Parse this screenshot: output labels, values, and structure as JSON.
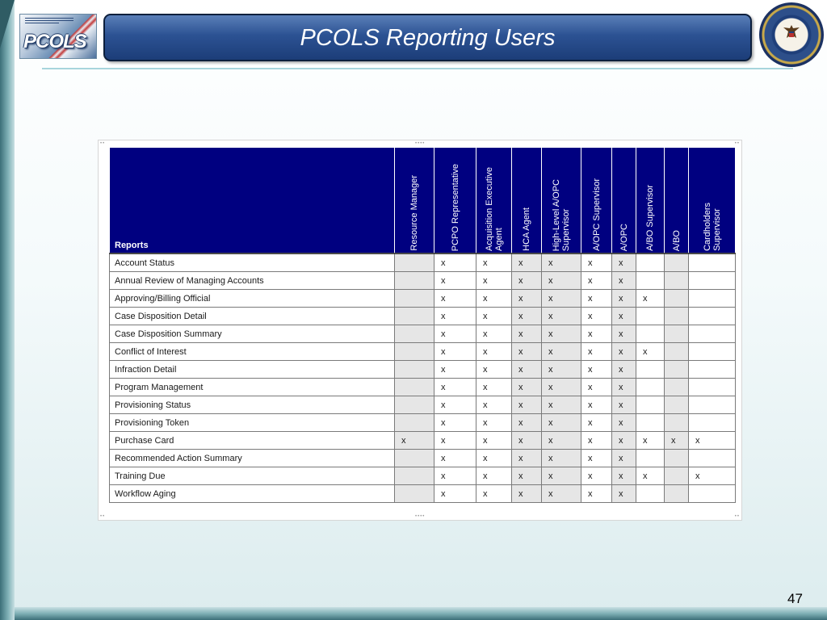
{
  "slide": {
    "title": "PCOLS Reporting Users",
    "page_number": "47",
    "logo_text": "PCOLS",
    "seal_text": "DEPARTMENT OF DEFENSE UNITED STATES OF AMERICA"
  },
  "table": {
    "row_header": "Reports",
    "columns": [
      "Resource Manager",
      "PCPO Representative",
      "Acquisition Executive\nAgent",
      "HCA Agent",
      "High-Level A/OPC\nSupervisor",
      "A/OPC Supervisor",
      "A/OPC",
      "A/BO Supervisor",
      "A/BO",
      "Cardholders\nSupervisor"
    ],
    "shaded_columns": [
      0,
      3,
      4,
      6,
      8
    ],
    "rows": [
      {
        "name": "Account Status",
        "marks": [
          "",
          "x",
          "x",
          "x",
          "x",
          "x",
          "x",
          "",
          "",
          ""
        ]
      },
      {
        "name": "Annual Review of Managing Accounts",
        "marks": [
          "",
          "x",
          "x",
          "x",
          "x",
          "x",
          "x",
          "",
          "",
          ""
        ]
      },
      {
        "name": "Approving/Billing Official",
        "marks": [
          "",
          "x",
          "x",
          "x",
          "x",
          "x",
          "x",
          "x",
          "",
          ""
        ]
      },
      {
        "name": "Case Disposition Detail",
        "marks": [
          "",
          "x",
          "x",
          "x",
          "x",
          "x",
          "x",
          "",
          "",
          ""
        ]
      },
      {
        "name": "Case Disposition Summary",
        "marks": [
          "",
          "x",
          "x",
          "x",
          "x",
          "x",
          "x",
          "",
          "",
          ""
        ]
      },
      {
        "name": "Conflict of Interest",
        "marks": [
          "",
          "x",
          "x",
          "x",
          "x",
          "x",
          "x",
          "x",
          "",
          ""
        ]
      },
      {
        "name": "Infraction Detail",
        "marks": [
          "",
          "x",
          "x",
          "x",
          "x",
          "x",
          "x",
          "",
          "",
          ""
        ]
      },
      {
        "name": "Program Management",
        "marks": [
          "",
          "x",
          "x",
          "x",
          "x",
          "x",
          "x",
          "",
          "",
          ""
        ]
      },
      {
        "name": "Provisioning Status",
        "marks": [
          "",
          "x",
          "x",
          "x",
          "x",
          "x",
          "x",
          "",
          "",
          ""
        ]
      },
      {
        "name": "Provisioning Token",
        "marks": [
          "",
          "x",
          "x",
          "x",
          "x",
          "x",
          "x",
          "",
          "",
          ""
        ]
      },
      {
        "name": "Purchase Card",
        "marks": [
          "x",
          "x",
          "x",
          "x",
          "x",
          "x",
          "x",
          "x",
          "x",
          "x"
        ]
      },
      {
        "name": "Recommended Action Summary",
        "marks": [
          "",
          "x",
          "x",
          "x",
          "x",
          "x",
          "x",
          "",
          "",
          ""
        ]
      },
      {
        "name": "Training Due",
        "marks": [
          "",
          "x",
          "x",
          "x",
          "x",
          "x",
          "x",
          "x",
          "",
          "x"
        ]
      },
      {
        "name": "Workflow Aging",
        "marks": [
          "",
          "x",
          "x",
          "x",
          "x",
          "x",
          "x",
          "",
          "",
          ""
        ]
      }
    ]
  },
  "colors": {
    "header_bg": "#000080",
    "title_bar": "#2c5293",
    "shade": "#e6e6e6",
    "rule": "#a7d5dc"
  }
}
